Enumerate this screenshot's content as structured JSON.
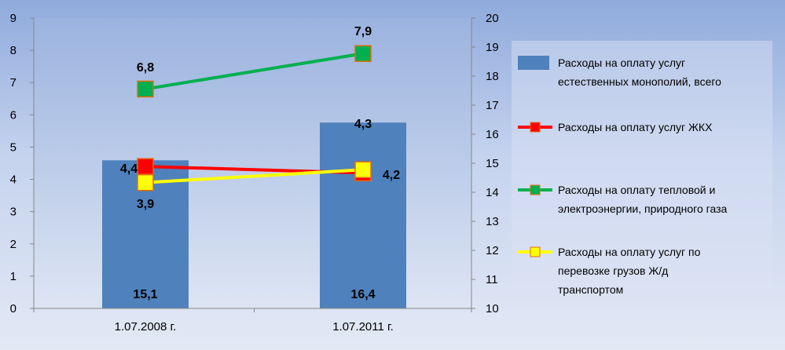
{
  "chart_data": {
    "type": "bar+line",
    "categories": [
      "1.07.2008 г.",
      "1.07.2011 г."
    ],
    "y_left": {
      "min": 0,
      "max": 9,
      "ticks": [
        "0",
        "1",
        "2",
        "3",
        "4",
        "5",
        "6",
        "7",
        "8",
        "9"
      ]
    },
    "y_right": {
      "min": 10,
      "max": 20,
      "ticks": [
        "10",
        "11",
        "12",
        "13",
        "14",
        "15",
        "16",
        "17",
        "18",
        "19",
        "20"
      ]
    },
    "grid": false,
    "legend_position": "right",
    "series": [
      {
        "name": "Расходы на оплату услуг естественных монополий, всего",
        "kind": "bar",
        "axis": "right",
        "values": [
          15.1,
          16.4
        ],
        "labels": [
          "15,1",
          "16,4"
        ],
        "color": "#4f81bd"
      },
      {
        "name": "Расходы на оплату услуг ЖКХ",
        "kind": "line",
        "axis": "left",
        "values": [
          4.4,
          4.2
        ],
        "labels": [
          "4,4",
          "4,2"
        ],
        "color": "#ff0000"
      },
      {
        "name": "Расходы на оплату тепловой и электроэнергии, природного газа",
        "kind": "line",
        "axis": "left",
        "values": [
          6.8,
          7.9
        ],
        "labels": [
          "6,8",
          "7,9"
        ],
        "color": "#00b050"
      },
      {
        "name": "Расходы на оплату услуг по перевозке грузов Ж/д транспортом",
        "kind": "line",
        "axis": "left",
        "values": [
          3.9,
          4.3
        ],
        "labels": [
          "3,9",
          "4,3"
        ],
        "color": "#ffff00"
      }
    ]
  }
}
